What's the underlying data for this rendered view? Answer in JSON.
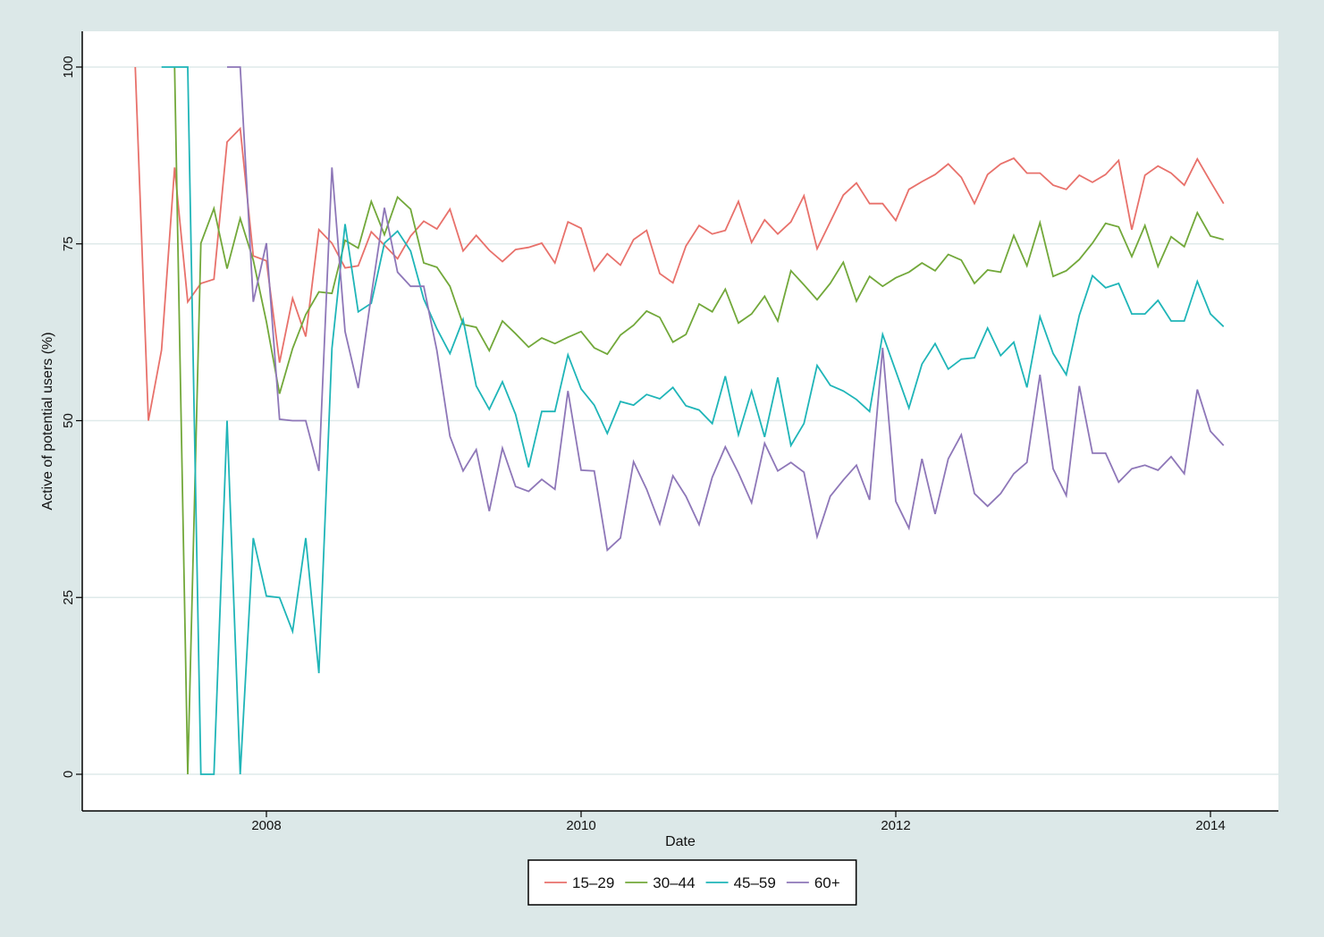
{
  "chart_data": {
    "type": "line",
    "title": "",
    "xlabel": "Date",
    "ylabel": "Active of potential users (%)",
    "ylim": [
      0,
      100
    ],
    "yticks": [
      "0",
      "25",
      "50",
      "75",
      "100"
    ],
    "xticks": [
      "2008",
      "2010",
      "2012",
      "2014"
    ],
    "grid": true,
    "legend_position": "bottom",
    "x_start": "2007-03",
    "x": [
      "2007-03",
      "2007-04",
      "2007-05",
      "2007-06",
      "2007-07",
      "2007-08",
      "2007-09",
      "2007-10",
      "2007-11",
      "2007-12",
      "2008-01",
      "2008-02",
      "2008-03",
      "2008-04",
      "2008-05",
      "2008-06",
      "2008-07",
      "2008-08",
      "2008-09",
      "2008-10",
      "2008-11",
      "2008-12",
      "2009-01",
      "2009-02",
      "2009-03",
      "2009-04",
      "2009-05",
      "2009-06",
      "2009-07",
      "2009-08",
      "2009-09",
      "2009-10",
      "2009-11",
      "2009-12",
      "2010-01",
      "2010-02",
      "2010-03",
      "2010-04",
      "2010-05",
      "2010-06",
      "2010-07",
      "2010-08",
      "2010-09",
      "2010-10",
      "2010-11",
      "2010-12",
      "2011-01",
      "2011-02",
      "2011-03",
      "2011-04",
      "2011-05",
      "2011-06",
      "2011-07",
      "2011-08",
      "2011-09",
      "2011-10",
      "2011-11",
      "2011-12",
      "2012-01",
      "2012-02",
      "2012-03",
      "2012-04",
      "2012-05",
      "2012-06",
      "2012-07",
      "2012-08",
      "2012-09",
      "2012-10",
      "2012-11",
      "2012-12",
      "2013-01",
      "2013-02",
      "2013-03",
      "2013-04",
      "2013-05",
      "2013-06",
      "2013-07",
      "2013-08",
      "2013-09",
      "2013-10",
      "2013-11",
      "2013-12",
      "2014-01",
      "2014-02"
    ],
    "series": [
      {
        "name": "15–29",
        "color": "#e8716b",
        "values": [
          100,
          50,
          60,
          85.8,
          66.8,
          69.4,
          70,
          89.4,
          91.3,
          73.3,
          72.6,
          58.2,
          67.3,
          61.9,
          77,
          75.1,
          71.6,
          71.9,
          76.7,
          74.8,
          72.9,
          76.1,
          78.2,
          77.1,
          79.9,
          74,
          76.2,
          74.1,
          72.5,
          74.2,
          74.5,
          75.1,
          72.3,
          78.1,
          77.2,
          71.2,
          73.6,
          72,
          75.6,
          76.9,
          70.8,
          69.5,
          74.7,
          77.6,
          76.4,
          76.9,
          81,
          75.2,
          78.4,
          76.4,
          78.1,
          81.8,
          74.3,
          78.1,
          81.9,
          83.6,
          80.7,
          80.7,
          78.3,
          82.7,
          83.8,
          84.8,
          86.3,
          84.4,
          80.7,
          84.8,
          86.3,
          87.1,
          85,
          85,
          83.3,
          82.7,
          84.7,
          83.7,
          84.8,
          86.8,
          77,
          84.7,
          86,
          85,
          83.3,
          87,
          83.8,
          80.7
        ]
      },
      {
        "name": "30–44",
        "color": "#72a83a",
        "values": [
          null,
          null,
          null,
          100,
          0,
          75.1,
          80,
          71.5,
          78.6,
          72.7,
          64,
          53.8,
          60.2,
          65,
          68.2,
          68,
          75.5,
          74.4,
          81,
          76.3,
          81.6,
          79.9,
          72.3,
          71.7,
          69,
          63.6,
          63.2,
          59.9,
          64.1,
          62.3,
          60.4,
          61.7,
          60.9,
          61.8,
          62.6,
          60.3,
          59.4,
          62.1,
          63.5,
          65.5,
          64.6,
          61.1,
          62.2,
          66.5,
          65.4,
          68.6,
          63.8,
          65.1,
          67.6,
          64.1,
          71.2,
          69.2,
          67.1,
          69.4,
          72.4,
          66.9,
          70.4,
          69,
          70.2,
          71,
          72.3,
          71.2,
          73.5,
          72.7,
          69.4,
          71.3,
          71,
          76.2,
          71.9,
          78,
          70.4,
          71.2,
          72.8,
          75.1,
          77.9,
          77.4,
          73.2,
          77.6,
          71.8,
          76,
          74.6,
          79.4,
          76.1,
          75.6
        ]
      },
      {
        "name": "45–59",
        "color": "#1fb5b8",
        "values": [
          null,
          null,
          100,
          100,
          100,
          0,
          0,
          50,
          0,
          33.4,
          25.2,
          25,
          20.2,
          33.4,
          14.3,
          60.2,
          77.8,
          65.4,
          66.6,
          75.1,
          76.8,
          74,
          67.2,
          63,
          59.5,
          64.3,
          54.9,
          51.6,
          55.5,
          50.9,
          43.4,
          51.3,
          51.3,
          59.3,
          54.5,
          52.2,
          48.2,
          52.7,
          52.2,
          53.7,
          53.1,
          54.7,
          52.1,
          51.5,
          49.6,
          56.3,
          48,
          54.2,
          47.7,
          56.1,
          46.5,
          49.6,
          57.8,
          55,
          54.2,
          53,
          51.3,
          62.2,
          57,
          51.8,
          58,
          60.9,
          57.3,
          58.7,
          58.9,
          63.1,
          59.2,
          61.1,
          54.7,
          64.7,
          59.5,
          56.5,
          64.9,
          70.5,
          68.8,
          69.4,
          65.1,
          65.1,
          67,
          64.1,
          64.1,
          69.7,
          65.1,
          63.3
        ]
      },
      {
        "name": "60+",
        "color": "#8e77b8",
        "values": [
          null,
          null,
          null,
          null,
          null,
          null,
          null,
          100,
          100,
          66.8,
          75.1,
          50.2,
          50,
          50,
          42.9,
          85.8,
          62.6,
          54.6,
          67.7,
          80.1,
          71,
          69,
          69,
          59.9,
          47.8,
          42.9,
          45.9,
          37.2,
          46.1,
          40.7,
          40,
          41.7,
          40.3,
          54.2,
          43,
          42.9,
          31.7,
          33.4,
          44.2,
          40.3,
          35.4,
          42.2,
          39.3,
          35.3,
          42,
          46.3,
          42.6,
          38.4,
          46.8,
          42.9,
          44.1,
          42.7,
          33.6,
          39.3,
          41.6,
          43.7,
          38.8,
          60.3,
          38.6,
          34.8,
          44.6,
          36.8,
          44.6,
          48,
          39.7,
          37.9,
          39.7,
          42.5,
          44.1,
          56.5,
          43.2,
          39.4,
          54.9,
          45.4,
          45.4,
          41.3,
          43.2,
          43.7,
          43,
          44.9,
          42.5,
          54.4,
          48.5,
          46.5
        ]
      }
    ]
  },
  "colors": {
    "background": "#dce8e8",
    "plot_background": "#ffffff",
    "grid": "#dfeaea"
  }
}
